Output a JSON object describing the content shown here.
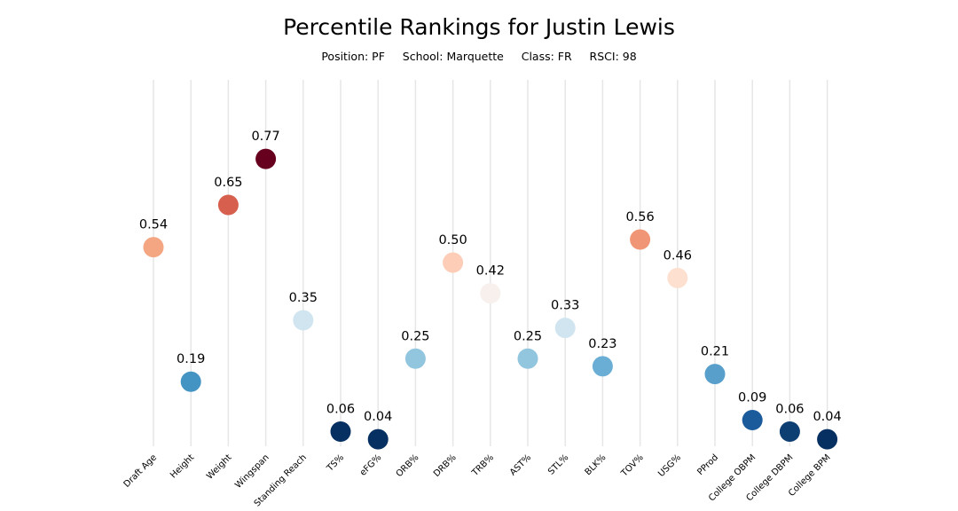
{
  "chart_data": {
    "type": "scatter",
    "title": "Percentile Rankings for Justin Lewis",
    "subtitle": "Position: PF     School: Marquette     Class: FR     RSCI: 98",
    "xlabel": "",
    "ylabel": "",
    "ylim": [
      0,
      1
    ],
    "grid": "vertical",
    "categories": [
      "Draft Age",
      "Height",
      "Weight",
      "Wingspan",
      "Standing Reach",
      "TS%",
      "eFG%",
      "ORB%",
      "DRB%",
      "TRB%",
      "AST%",
      "STL%",
      "BLK%",
      "TOV%",
      "USG%",
      "PProd",
      "College OBPM",
      "College DBPM",
      "College BPM"
    ],
    "values": [
      0.54,
      0.19,
      0.65,
      0.77,
      0.35,
      0.06,
      0.04,
      0.25,
      0.5,
      0.42,
      0.25,
      0.33,
      0.23,
      0.56,
      0.46,
      0.21,
      0.09,
      0.06,
      0.04
    ],
    "labels": [
      "0.54",
      "0.19",
      "0.65",
      "0.77",
      "0.35",
      "0.06",
      "0.04",
      "0.25",
      "0.50",
      "0.42",
      "0.25",
      "0.33",
      "0.23",
      "0.56",
      "0.46",
      "0.21",
      "0.09",
      "0.06",
      "0.04"
    ],
    "colors": [
      "#f4a582",
      "#4393c3",
      "#d6604d",
      "#67001f",
      "#d1e5f0",
      "#053061",
      "#053061",
      "#92c5de",
      "#fdcdb7",
      "#f7f0ed",
      "#92c5de",
      "#d1e5f0",
      "#6aaed6",
      "#f09677",
      "#fde0d0",
      "#589fcc",
      "#1b5a9b",
      "#0e3f73",
      "#053061"
    ]
  }
}
